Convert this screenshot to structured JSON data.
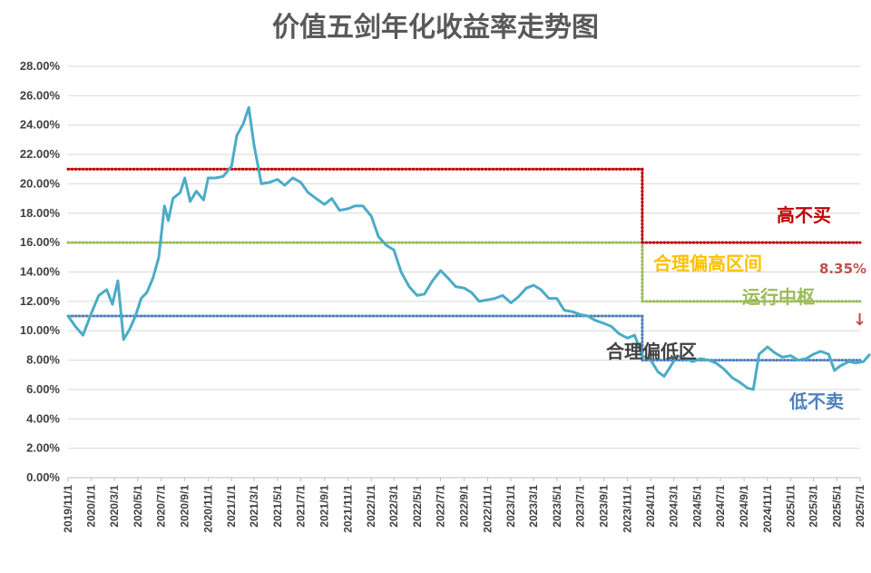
{
  "chart_data": {
    "type": "line",
    "title": "价值五剑年化收益率走势图",
    "xlabel": "",
    "ylabel": "",
    "ylim": [
      0,
      28
    ],
    "y_ticks": [
      "0.00%",
      "2.00%",
      "4.00%",
      "6.00%",
      "8.00%",
      "10.00%",
      "12.00%",
      "14.00%",
      "16.00%",
      "18.00%",
      "20.00%",
      "22.00%",
      "24.00%",
      "26.00%",
      "28.00%"
    ],
    "x_ticks": [
      "2019/11/1",
      "2020/1/1",
      "2020/3/1",
      "2020/5/1",
      "2020/7/1",
      "2020/9/1",
      "2020/11/1",
      "2021/1/1",
      "2021/3/1",
      "2021/5/1",
      "2021/7/1",
      "2021/9/1",
      "2021/11/1",
      "2022/1/1",
      "2022/3/1",
      "2022/5/1",
      "2022/7/1",
      "2022/9/1",
      "2022/11/1",
      "2023/1/1",
      "2023/3/1",
      "2023/5/1",
      "2023/7/1",
      "2023/9/1",
      "2023/11/1",
      "2024/1/1",
      "2024/3/1",
      "2024/5/1",
      "2024/7/1",
      "2024/9/1",
      "2024/11/1",
      "2025/1/1",
      "2025/3/1",
      "2025/5/1",
      "2025/7/1"
    ],
    "grid": true,
    "series": [
      {
        "color": "#4BACC6",
        "x": [
          "2019/11/1",
          "2019/11/20",
          "2019/12/10",
          "2020/1/1",
          "2020/1/20",
          "2020/2/10",
          "2020/2/25",
          "2020/3/10",
          "2020/3/25",
          "2020/4/10",
          "2020/4/25",
          "2020/5/10",
          "2020/5/25",
          "2020/6/10",
          "2020/6/25",
          "2020/7/10",
          "2020/7/20",
          "2020/8/1",
          "2020/8/20",
          "2020/9/1",
          "2020/9/15",
          "2020/10/1",
          "2020/10/20",
          "2020/11/1",
          "2020/11/20",
          "2020/12/10",
          "2021/1/1",
          "2021/1/15",
          "2021/2/1",
          "2021/2/15",
          "2021/3/1",
          "2021/3/20",
          "2021/4/10",
          "2021/5/1",
          "2021/5/20",
          "2021/6/10",
          "2021/7/1",
          "2021/7/20",
          "2021/8/10",
          "2021/9/1",
          "2021/9/20",
          "2021/10/10",
          "2021/11/1",
          "2021/11/20",
          "2021/12/10",
          "2022/1/1",
          "2022/1/20",
          "2022/2/10",
          "2022/3/1",
          "2022/3/20",
          "2022/4/10",
          "2022/5/1",
          "2022/5/20",
          "2022/6/10",
          "2022/7/1",
          "2022/7/20",
          "2022/8/10",
          "2022/9/1",
          "2022/9/20",
          "2022/10/10",
          "2022/11/1",
          "2022/11/20",
          "2022/12/10",
          "2023/1/1",
          "2023/1/20",
          "2023/2/10",
          "2023/3/1",
          "2023/3/20",
          "2023/4/10",
          "2023/5/1",
          "2023/5/20",
          "2023/6/10",
          "2023/7/1",
          "2023/7/20",
          "2023/8/10",
          "2023/9/1",
          "2023/9/20",
          "2023/10/10",
          "2023/11/1",
          "2023/11/20",
          "2023/12/10",
          "2024/1/1",
          "2024/1/20",
          "2024/2/5",
          "2024/2/20",
          "2024/3/10",
          "2024/4/1",
          "2024/4/20",
          "2024/5/10",
          "2024/6/1",
          "2024/6/20",
          "2024/7/10",
          "2024/8/1",
          "2024/8/20",
          "2024/9/10",
          "2024/9/25",
          "2024/10/10",
          "2024/11/1",
          "2024/11/20",
          "2024/12/10",
          "2025/1/1",
          "2025/1/20",
          "2025/2/10",
          "2025/3/1",
          "2025/3/20",
          "2025/4/10",
          "2025/4/25",
          "2025/5/10",
          "2025/6/1",
          "2025/6/20",
          "2025/7/10",
          "2025/7/25"
        ],
        "values": [
          11.0,
          10.3,
          9.7,
          11.2,
          12.4,
          12.8,
          11.8,
          13.4,
          9.4,
          10.1,
          11.0,
          12.2,
          12.6,
          13.6,
          15.0,
          18.5,
          17.5,
          19.0,
          19.4,
          20.4,
          18.8,
          19.5,
          18.9,
          20.4,
          20.4,
          20.5,
          21.2,
          23.3,
          24.1,
          25.2,
          22.6,
          20.0,
          20.1,
          20.3,
          19.9,
          20.4,
          20.1,
          19.4,
          19.0,
          18.6,
          19.0,
          18.2,
          18.3,
          18.5,
          18.5,
          17.8,
          16.4,
          15.8,
          15.5,
          14.0,
          13.0,
          12.4,
          12.5,
          13.4,
          14.1,
          13.6,
          13.0,
          12.9,
          12.6,
          12.0,
          12.1,
          12.2,
          12.4,
          11.9,
          12.3,
          12.9,
          13.1,
          12.8,
          12.2,
          12.2,
          11.4,
          11.3,
          11.1,
          11.0,
          10.7,
          10.5,
          10.3,
          9.8,
          9.5,
          9.7,
          8.3,
          8.0,
          7.2,
          6.9,
          7.5,
          8.3,
          8.1,
          7.9,
          8.1,
          8.0,
          7.8,
          7.4,
          6.8,
          6.5,
          6.1,
          6.0,
          8.4,
          8.9,
          8.5,
          8.2,
          8.3,
          8.0,
          8.1,
          8.4,
          8.6,
          8.4,
          7.3,
          7.6,
          7.9,
          7.8,
          7.9,
          8.35
        ]
      }
    ],
    "reference_lines": [
      {
        "value": 21,
        "color": "#C00000",
        "label": "高不买"
      },
      {
        "value": 16,
        "color": "#9BBB59",
        "label": "合理偏高区间"
      },
      {
        "value": 11,
        "color": "#4F81BD",
        "label": "合理偏低区"
      },
      {
        "value": 12,
        "color": "#9BBB59",
        "label": "运行中枢"
      },
      {
        "value": 8,
        "color": "#4F81BD",
        "label": "低不卖"
      }
    ],
    "annotations": [
      {
        "text": "8.35%",
        "color": "#C0504D"
      },
      {
        "text": "↓",
        "color": "#C0504D"
      }
    ]
  }
}
